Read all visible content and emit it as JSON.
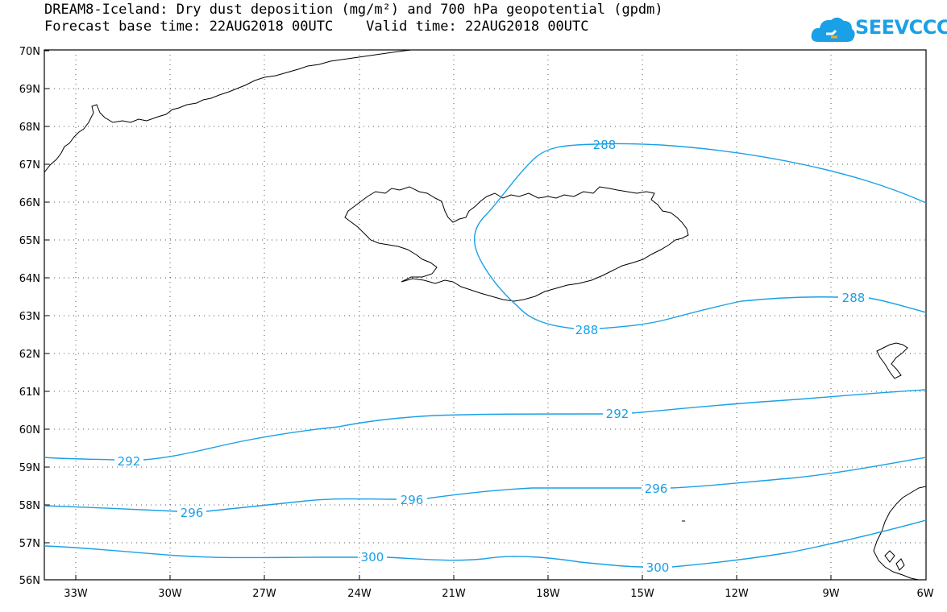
{
  "header": {
    "line1": "DREAM8-Iceland: Dry dust deposition (mg/m²) and 700 hPa geopotential (gpdm)",
    "line2": "Forecast base time: 22AUG2018 00UTC    Valid time: 22AUG2018 00UTC"
  },
  "logo": {
    "text": "SEEVCCC",
    "icon": "cloud-icon"
  },
  "colors": {
    "contour": "#1aa0e6",
    "coast": "#000000",
    "grid": "#555555"
  },
  "map": {
    "lon_range": [
      -34,
      -6
    ],
    "lat_range": [
      56,
      70
    ],
    "lat_labels": [
      "70N",
      "69N",
      "68N",
      "67N",
      "66N",
      "65N",
      "64N",
      "63N",
      "62N",
      "61N",
      "60N",
      "59N",
      "58N",
      "57N",
      "56N"
    ],
    "lon_labels": [
      "33W",
      "30W",
      "27W",
      "24W",
      "21W",
      "18W",
      "15W",
      "12W",
      "9W",
      "6W"
    ],
    "grid": "dotted"
  },
  "contours": [
    {
      "value": "288",
      "labels": [
        "288",
        "288",
        "288"
      ]
    },
    {
      "value": "292",
      "labels": [
        "292",
        "292"
      ]
    },
    {
      "value": "296",
      "labels": [
        "296",
        "296",
        "296"
      ]
    },
    {
      "value": "300",
      "labels": [
        "300",
        "300"
      ]
    }
  ]
}
